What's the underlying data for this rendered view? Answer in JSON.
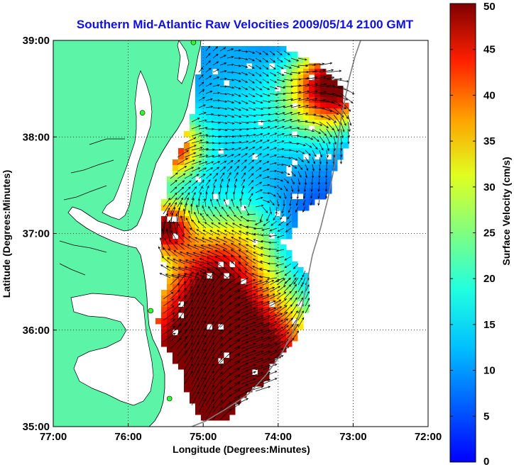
{
  "title": "Southern Mid-Atlantic Raw Velocities 2009/05/14 2100 GMT",
  "colors": {
    "title": "#1010e0",
    "land": "#5cf5a8",
    "background": "#ffffff"
  },
  "map": {
    "xlabel": "Longitude (Degrees:Minutes)",
    "ylabel": "Latitude (Degrees:Minutes)",
    "xlim": [
      -77,
      -72
    ],
    "ylim": [
      35,
      39
    ],
    "x_ticks": [
      {
        "value": -77,
        "label": "77:00"
      },
      {
        "value": -76,
        "label": "76:00"
      },
      {
        "value": -75,
        "label": "75:00"
      },
      {
        "value": -74,
        "label": "74:00"
      },
      {
        "value": -73,
        "label": "73:00"
      },
      {
        "value": -72,
        "label": "72:00"
      }
    ],
    "y_ticks": [
      {
        "value": 35,
        "label": "35:00"
      },
      {
        "value": 36,
        "label": "36:00"
      },
      {
        "value": 37,
        "label": "37:00"
      },
      {
        "value": 38,
        "label": "38:00"
      },
      {
        "value": 39,
        "label": "39:00"
      }
    ],
    "grid": "dotted",
    "stations": [
      {
        "lon": -75.13,
        "lat": 38.98
      },
      {
        "lon": -75.81,
        "lat": 38.25
      },
      {
        "lon": -75.7,
        "lat": 36.2
      },
      {
        "lon": -75.45,
        "lat": 35.29
      }
    ]
  },
  "colorbar": {
    "label": "Surface Velocity (cm/s)",
    "min": 0,
    "max": 50,
    "ticks": [
      {
        "value": 0,
        "label": "0"
      },
      {
        "value": 5,
        "label": "5"
      },
      {
        "value": 10,
        "label": "10"
      },
      {
        "value": 15,
        "label": "15"
      },
      {
        "value": 20,
        "label": "20"
      },
      {
        "value": 25,
        "label": "25"
      },
      {
        "value": 30,
        "label": "30"
      },
      {
        "value": 35,
        "label": "35"
      },
      {
        "value": 40,
        "label": "40"
      },
      {
        "value": 45,
        "label": "45"
      },
      {
        "value": 50,
        "label": "50"
      }
    ],
    "colormap": "jet"
  }
}
